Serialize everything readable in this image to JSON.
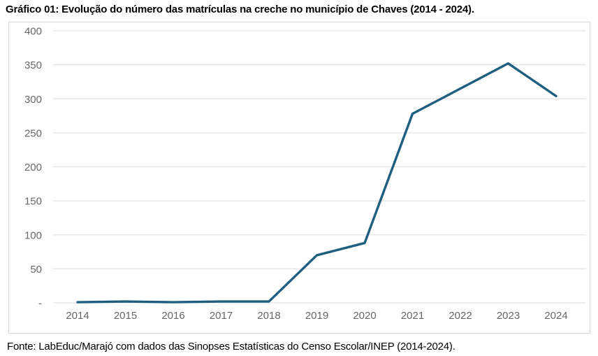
{
  "title": "Gráfico 01: Evolução do número das matrículas na creche no município de Chaves (2014 - 2024).",
  "source": "Fonte: LabEduc/Marajó com dados das Sinopses Estatísticas do Censo Escolar/INEP (2014-2024).",
  "colors": {
    "line": "#1E5F80",
    "grid": "#E4E4E4",
    "axis_text": "#666666",
    "frame_border": "#D8D8D8",
    "background": "#FFFFFF",
    "title_text": "#000000"
  },
  "chart_data": {
    "type": "line",
    "title": "Gráfico 01: Evolução do número das matrículas na creche no município de Chaves (2014 - 2024).",
    "categories": [
      "2014",
      "2015",
      "2016",
      "2017",
      "2018",
      "2019",
      "2020",
      "2021",
      "2022",
      "2023",
      "2024"
    ],
    "values": [
      1,
      2,
      1,
      2,
      2,
      70,
      88,
      278,
      315,
      352,
      304
    ],
    "xlabel": "",
    "ylabel": "",
    "ylim": [
      0,
      400
    ],
    "ytick_step": 50,
    "ytick_labels": [
      "-",
      "50",
      "100",
      "150",
      "200",
      "250",
      "300",
      "350",
      "400"
    ],
    "grid": "horizontal",
    "legend": "none",
    "source_note": "Fonte: LabEduc/Marajó com dados das Sinopses Estatísticas do Censo Escolar/INEP (2014-2024)."
  }
}
